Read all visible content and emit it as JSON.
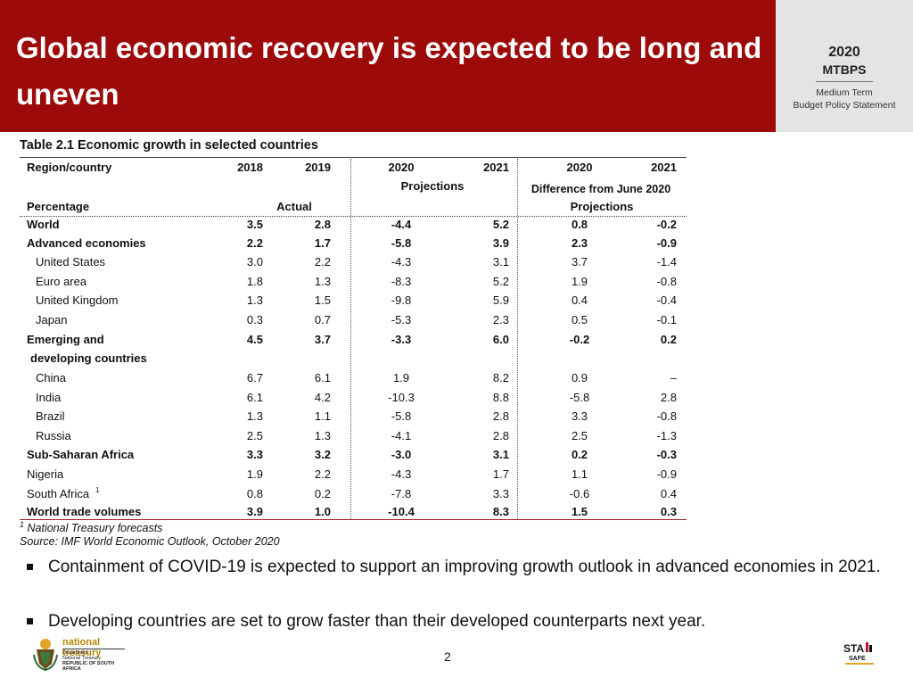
{
  "header": {
    "title": "Global economic recovery is expected to be long and uneven"
  },
  "brand": {
    "year": "2020",
    "code": "MTBPS",
    "line1": "Medium Term",
    "line2": "Budget Policy Statement"
  },
  "table": {
    "title": "Table 2.1  Economic growth in selected countries",
    "headers": {
      "region": "Region/country",
      "y2018": "2018",
      "y2019": "2019",
      "p2020": "2020",
      "p2021": "2021",
      "d2020": "2020",
      "d2021": "2021",
      "projections": "Projections",
      "difference": "Difference from June 2020",
      "percentage": "Percentage",
      "actual": "Actual",
      "projections2": "Projections"
    },
    "rows": [
      {
        "name": "World",
        "v": [
          "3.5",
          "2.8",
          "-4.4",
          "5.2",
          "0.8",
          "-0.2"
        ],
        "bold": true,
        "indent": false
      },
      {
        "name": "Advanced economies",
        "v": [
          "2.2",
          "1.7",
          "-5.8",
          "3.9",
          "2.3",
          "-0.9"
        ],
        "bold": true,
        "indent": false
      },
      {
        "name": "United States",
        "v": [
          "3.0",
          "2.2",
          "-4.3",
          "3.1",
          "3.7",
          "-1.4"
        ],
        "bold": false,
        "indent": true
      },
      {
        "name": "Euro area",
        "v": [
          "1.8",
          "1.3",
          "-8.3",
          "5.2",
          "1.9",
          "-0.8"
        ],
        "bold": false,
        "indent": true
      },
      {
        "name": "United Kingdom",
        "v": [
          "1.3",
          "1.5",
          "-9.8",
          "5.9",
          "0.4",
          "-0.4"
        ],
        "bold": false,
        "indent": true
      },
      {
        "name": "Japan",
        "v": [
          "0.3",
          "0.7",
          "-5.3",
          "2.3",
          "0.5",
          "-0.1"
        ],
        "bold": false,
        "indent": true
      },
      {
        "name": "Emerging and",
        "name2": "developing countries",
        "v": [
          "4.5",
          "3.7",
          "-3.3",
          "6.0",
          "-0.2",
          "0.2"
        ],
        "bold": true,
        "indent": false
      },
      {
        "name": "China",
        "v": [
          "6.7",
          "6.1",
          "1.9",
          "8.2",
          "0.9",
          "–"
        ],
        "bold": false,
        "indent": true
      },
      {
        "name": "India",
        "v": [
          "6.1",
          "4.2",
          "-10.3",
          "8.8",
          "-5.8",
          "2.8"
        ],
        "bold": false,
        "indent": true
      },
      {
        "name": "Brazil",
        "v": [
          "1.3",
          "1.1",
          "-5.8",
          "2.8",
          "3.3",
          "-0.8"
        ],
        "bold": false,
        "indent": true
      },
      {
        "name": "Russia",
        "v": [
          "2.5",
          "1.3",
          "-4.1",
          "2.8",
          "2.5",
          "-1.3"
        ],
        "bold": false,
        "indent": true
      },
      {
        "name": "Sub-Saharan Africa",
        "v": [
          "3.3",
          "3.2",
          "-3.0",
          "3.1",
          "0.2",
          "-0.3"
        ],
        "bold": true,
        "indent": false
      },
      {
        "name": "Nigeria",
        "v": [
          "1.9",
          "2.2",
          "-4.3",
          "1.7",
          "1.1",
          "-0.9"
        ],
        "bold": false,
        "indent": false
      },
      {
        "name": "South Africa",
        "sup": "1",
        "v": [
          "0.8",
          "0.2",
          "-7.8",
          "3.3",
          "-0.6",
          "0.4"
        ],
        "bold": false,
        "indent": false
      },
      {
        "name": "World trade volumes",
        "v": [
          "3.9",
          "1.0",
          "-10.4",
          "8.3",
          "1.5",
          "0.3"
        ],
        "bold": true,
        "indent": false
      }
    ],
    "footnote_sup": "1",
    "footnote": "National Treasury forecasts",
    "source": "Source: IMF World Economic Outlook, October 2020"
  },
  "bullets": [
    "Containment of COVID-19 is expected to support an improving growth outlook in advanced economies in 2021.",
    "Developing countries are set to grow faster than their developed counterparts next year."
  ],
  "footer": {
    "page": "2",
    "logo_left": "national treasury",
    "logo_left_sub1": "Department:",
    "logo_left_sub2": "National Treasury",
    "logo_left_sub3": "REPUBLIC OF SOUTH AFRICA",
    "logo_right": "STATS SA"
  }
}
